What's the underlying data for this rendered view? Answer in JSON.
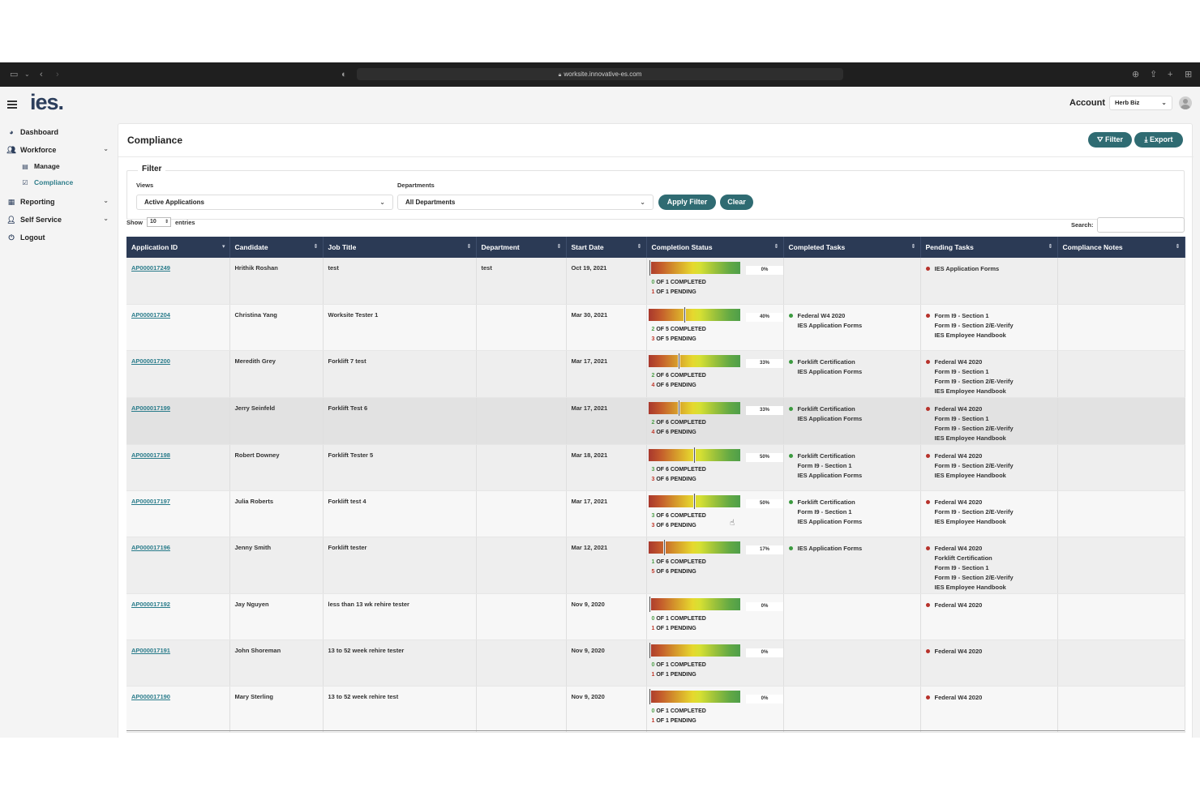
{
  "browser": {
    "url": "worksite.innovative-es.com"
  },
  "app": {
    "logo": "ies",
    "logo_dot": "."
  },
  "sidebar": {
    "items": [
      {
        "label": "Dashboard"
      },
      {
        "label": "Workforce"
      },
      {
        "label": "Manage"
      },
      {
        "label": "Compliance"
      },
      {
        "label": "Reporting"
      },
      {
        "label": "Self Service"
      },
      {
        "label": "Logout"
      }
    ]
  },
  "account": {
    "label": "Account",
    "selected": "Herb Biz"
  },
  "page": {
    "title": "Compliance",
    "filter_btn": "Filter",
    "export_btn": "Export"
  },
  "filter": {
    "legend": "Filter",
    "views_label": "Views",
    "views_value": "Active Applications",
    "departments_label": "Departments",
    "departments_value": "All Departments",
    "apply": "Apply Filter",
    "clear": "Clear"
  },
  "entries": {
    "show": "Show",
    "value": "10",
    "suffix": "entries"
  },
  "search": {
    "label": "Search:"
  },
  "table": {
    "headers": [
      "Application ID",
      "Candidate",
      "Job Title",
      "Department",
      "Start Date",
      "Completion Status",
      "Completed Tasks",
      "Pending Tasks",
      "Compliance Notes"
    ],
    "rows": [
      {
        "id": "AP000017249",
        "candidate": "Hrithik Roshan",
        "job": "test",
        "dept": "test",
        "start": "Oct 19, 2021",
        "pct": 0,
        "pct_label": "0%",
        "done": "0",
        "total": "1",
        "pending": "1",
        "completed_tasks": [],
        "pending_tasks": [
          "IES Application Forms"
        ]
      },
      {
        "id": "AP000017204",
        "candidate": "Christina Yang",
        "job": "Worksite Tester 1",
        "dept": "",
        "start": "Mar 30, 2021",
        "pct": 40,
        "pct_label": "40%",
        "done": "2",
        "total": "5",
        "pending": "3",
        "completed_tasks": [
          "Federal W4 2020",
          "IES Application Forms"
        ],
        "pending_tasks": [
          "Form I9 - Section 1",
          "Form I9 - Section 2/E-Verify",
          "IES Employee Handbook"
        ]
      },
      {
        "id": "AP000017200",
        "candidate": "Meredith Grey",
        "job": "Forklift 7 test",
        "dept": "",
        "start": "Mar 17, 2021",
        "pct": 33,
        "pct_label": "33%",
        "done": "2",
        "total": "6",
        "pending": "4",
        "completed_tasks": [
          "Forklift Certification",
          "IES Application Forms"
        ],
        "pending_tasks": [
          "Federal W4 2020",
          "Form I9 - Section 1",
          "Form I9 - Section 2/E-Verify",
          "IES Employee Handbook"
        ]
      },
      {
        "id": "AP000017199",
        "candidate": "Jerry Seinfeld",
        "job": "Forklift Test 6",
        "dept": "",
        "start": "Mar 17, 2021",
        "pct": 33,
        "pct_label": "33%",
        "done": "2",
        "total": "6",
        "pending": "4",
        "completed_tasks": [
          "Forklift Certification",
          "IES Application Forms"
        ],
        "pending_tasks": [
          "Federal W4 2020",
          "Form I9 - Section 1",
          "Form I9 - Section 2/E-Verify",
          "IES Employee Handbook"
        ]
      },
      {
        "id": "AP000017198",
        "candidate": "Robert Downey",
        "job": "Forklift Tester 5",
        "dept": "",
        "start": "Mar 18, 2021",
        "pct": 50,
        "pct_label": "50%",
        "done": "3",
        "total": "6",
        "pending": "3",
        "completed_tasks": [
          "Forklift Certification",
          "Form I9 - Section 1",
          "IES Application Forms"
        ],
        "pending_tasks": [
          "Federal W4 2020",
          "Form I9 - Section 2/E-Verify",
          "IES Employee Handbook"
        ]
      },
      {
        "id": "AP000017197",
        "candidate": "Julia Roberts",
        "job": "Forklift test 4",
        "dept": "",
        "start": "Mar 17, 2021",
        "pct": 50,
        "pct_label": "50%",
        "done": "3",
        "total": "6",
        "pending": "3",
        "completed_tasks": [
          "Forklift Certification",
          "Form I9 - Section 1",
          "IES Application Forms"
        ],
        "pending_tasks": [
          "Federal W4 2020",
          "Form I9 - Section 2/E-Verify",
          "IES Employee Handbook"
        ]
      },
      {
        "id": "AP000017196",
        "candidate": "Jenny Smith",
        "job": "Forklift tester",
        "dept": "",
        "start": "Mar 12, 2021",
        "pct": 17,
        "pct_label": "17%",
        "done": "1",
        "total": "6",
        "pending": "5",
        "completed_tasks": [
          "IES Application Forms"
        ],
        "pending_tasks": [
          "Federal W4 2020",
          "Forklift Certification",
          "Form I9 - Section 1",
          "Form I9 - Section 2/E-Verify",
          "IES Employee Handbook"
        ]
      },
      {
        "id": "AP000017192",
        "candidate": "Jay Nguyen",
        "job": "less than 13 wk rehire tester",
        "dept": "",
        "start": "Nov 9, 2020",
        "pct": 0,
        "pct_label": "0%",
        "done": "0",
        "total": "1",
        "pending": "1",
        "completed_tasks": [],
        "pending_tasks": [
          "Federal W4 2020"
        ]
      },
      {
        "id": "AP000017191",
        "candidate": "John Shoreman",
        "job": "13 to 52 week rehire tester",
        "dept": "",
        "start": "Nov 9, 2020",
        "pct": 0,
        "pct_label": "0%",
        "done": "0",
        "total": "1",
        "pending": "1",
        "completed_tasks": [],
        "pending_tasks": [
          "Federal W4 2020"
        ]
      },
      {
        "id": "AP000017190",
        "candidate": "Mary Sterling",
        "job": "13 to 52 week rehire test",
        "dept": "",
        "start": "Nov 9, 2020",
        "pct": 0,
        "pct_label": "0%",
        "done": "0",
        "total": "1",
        "pending": "1",
        "completed_tasks": [],
        "pending_tasks": [
          "Federal W4 2020"
        ]
      }
    ],
    "of_word": "OF",
    "completed_word": "COMPLETED",
    "pending_word": "PENDING"
  }
}
